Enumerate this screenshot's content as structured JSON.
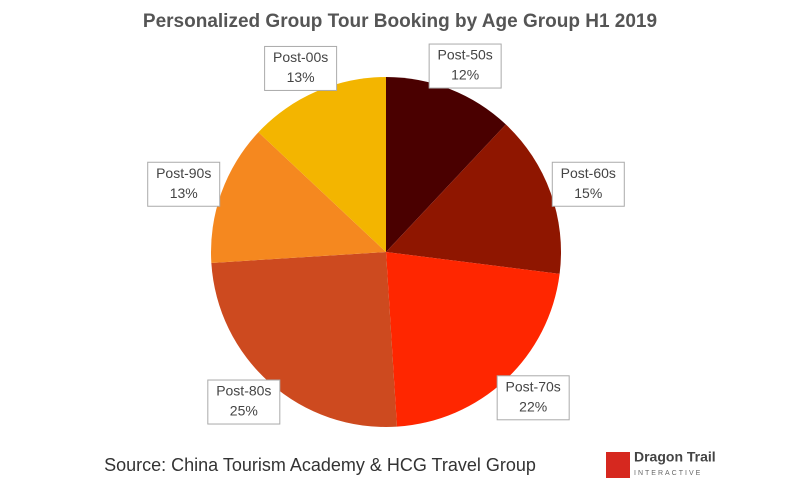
{
  "chart_data": {
    "type": "pie",
    "title": "Personalized Group Tour Booking by Age Group H1 2019",
    "categories": [
      "Post-50s",
      "Post-60s",
      "Post-70s",
      "Post-80s",
      "Post-90s",
      "Post-00s"
    ],
    "values": [
      12,
      15,
      22,
      25,
      13,
      13
    ],
    "value_labels": [
      "12%",
      "15%",
      "22%",
      "25%",
      "13%",
      "13%"
    ],
    "colors": [
      "#4a0000",
      "#8f1600",
      "#ff2600",
      "#cd4a1f",
      "#f5881f",
      "#f3b500"
    ],
    "source": "Source: China Tourism Academy & HCG Travel Group",
    "logo_text": "Dragon Trail",
    "logo_subtext": "INTERACTIVE"
  }
}
